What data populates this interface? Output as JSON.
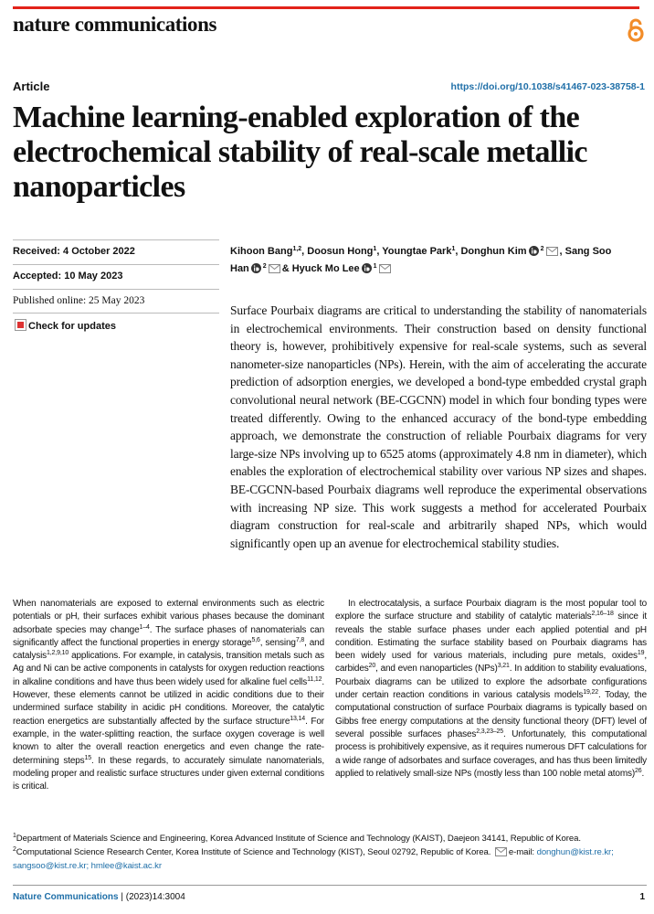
{
  "header": {
    "journal": "nature communications",
    "article_type": "Article",
    "doi": "https://doi.org/10.1038/s41467-023-38758-1"
  },
  "title": "Machine learning-enabled exploration of the electrochemical stability of real-scale metallic nanoparticles",
  "meta": {
    "received": "Received: 4 October 2022",
    "accepted": "Accepted: 10 May 2023",
    "published": "Published online: 25 May 2023",
    "updates": "Check for updates"
  },
  "authors": [
    {
      "name": "Kihoon Bang",
      "orcid": false,
      "affiliations": "1,2",
      "corresponding": false,
      "punct": ","
    },
    {
      "name": "Doosun Hong",
      "orcid": false,
      "affiliations": "1",
      "corresponding": false,
      "punct": ","
    },
    {
      "name": "Youngtae Park",
      "orcid": false,
      "affiliations": "1",
      "corresponding": false,
      "punct": ","
    },
    {
      "name": "Donghun Kim",
      "orcid": true,
      "affiliations": "2",
      "corresponding": true,
      "punct": ","
    },
    {
      "name": "Sang Soo Han",
      "orcid": true,
      "affiliations": "2",
      "corresponding": true,
      "punct": "&"
    },
    {
      "name": "Hyuck Mo Lee",
      "orcid": true,
      "affiliations": "1",
      "corresponding": true,
      "punct": ""
    }
  ],
  "abstract": "Surface Pourbaix diagrams are critical to understanding the stability of nanomaterials in electrochemical environments. Their construction based on density functional theory is, however, prohibitively expensive for real-scale systems, such as several nanometer-size nanoparticles (NPs). Herein, with the aim of accelerating the accurate prediction of adsorption energies, we developed a bond-type embedded crystal graph convolutional neural network (BE-CGCNN) model in which four bonding types were treated differently. Owing to the enhanced accuracy of the bond-type embedding approach, we demonstrate the construction of reliable Pourbaix diagrams for very large-size NPs involving up to 6525 atoms (approximately 4.8 nm in diameter), which enables the exploration of electrochemical stability over various NP sizes and shapes. BE-CGCNN-based Pourbaix diagrams well reproduce the experimental observations with increasing NP size. This work suggests a method for accelerated Pourbaix diagram construction for real-scale and arbitrarily shaped NPs, which would significantly open up an avenue for electrochemical stability studies.",
  "body": [
    [
      "When nanomaterials are exposed to external environments such as electric potentials or pH, their surfaces exhibit various phases because the dominant adsorbate species may change",
      "1–4",
      ". The surface phases of nanomaterials can significantly affect the functional properties in energy storage",
      "5,6",
      ", sensing",
      "7,8",
      ", and catalysis",
      "1,2,9,10",
      " applications. For example, in catalysis, transition metals such as Ag and Ni can be active components in catalysts for oxygen reduction reactions in alkaline conditions and have thus been widely used for alkaline fuel cells",
      "11,12",
      ". However, these elements cannot be utilized in acidic conditions due to their undermined surface stability in acidic pH conditions. Moreover, the catalytic reaction energetics are substantially affected by the surface structure",
      "13,14",
      ". For example, in the water-splitting reaction, the surface oxygen coverage is well known to alter the overall reaction energetics and even change the rate-determining steps",
      "15",
      ". In these regards, to accurately simulate nanomaterials, modeling proper and realistic surface structures under given external conditions is critical."
    ],
    [
      "In electrocatalysis, a surface Pourbaix diagram is the most popular tool to explore the surface structure and stability of catalytic materials",
      "2,16–18",
      " since it reveals the stable surface phases under each applied potential and pH condition. Estimating the surface stability based on Pourbaix diagrams has been widely used for various materials, including pure metals, oxides",
      "19",
      ", carbides",
      "20",
      ", and even nanoparticles (NPs)",
      "3,21",
      ". In addition to stability evaluations, Pourbaix diagrams can be utilized to explore the adsorbate configurations under certain reaction conditions in various catalysis models",
      "19,22",
      ". Today, the computational construction of surface Pourbaix diagrams is typically based on Gibbs free energy computations at the density functional theory (DFT) level of several possible surfaces phases",
      "2,3,23–25",
      ". Unfortunately, this computational process is prohibitively expensive, as it requires numerous DFT calculations for a wide range of adsorbates and surface coverages, and has thus been limitedly applied to relatively small-size NPs (mostly less than 100 noble metal atoms)",
      "26",
      "."
    ]
  ],
  "affiliations": [
    {
      "number": "1",
      "text": "Department of Materials Science and Engineering, Korea Advanced Institute of Science and Technology (KAIST), Daejeon 34141, Republic of Korea."
    },
    {
      "number": "2",
      "text": "Computational Science Research Center, Korea Institute of Science and Technology (KIST), Seoul 02792, Republic of Korea."
    }
  ],
  "email_label": "e-mail:",
  "emails": [
    "donghun@kist.re.kr;",
    "sangsoo@kist.re.kr;",
    "hmlee@kaist.ac.kr"
  ],
  "footer": {
    "journal": "Nature Communications",
    "citation": "| (2023)14:3004",
    "page": "1"
  }
}
